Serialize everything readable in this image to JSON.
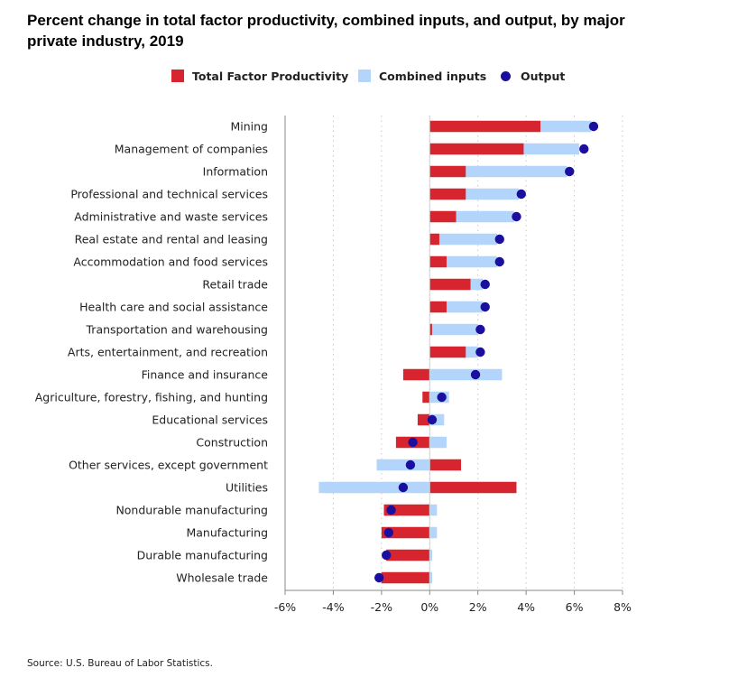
{
  "chart_data": {
    "type": "bar",
    "title": "Percent change in total factor productivity, combined inputs, and output, by major private industry, 2019",
    "orientation": "horizontal",
    "xlim": [
      -6,
      8
    ],
    "xticks": [
      -6,
      -4,
      -2,
      0,
      2,
      4,
      6,
      8
    ],
    "tick_labels": [
      "-6%",
      "-4%",
      "-2%",
      "0%",
      "2%",
      "4%",
      "6%",
      "8%"
    ],
    "grid": "vertical dotted",
    "legend_placement": "top-center",
    "categories": [
      "Mining",
      "Management of companies",
      "Information",
      "Professional and technical services",
      "Administrative and waste services",
      "Real estate and rental and leasing",
      "Accommodation and food services",
      "Retail trade",
      "Health care and social assistance",
      "Transportation and warehousing",
      "Arts, entertainment, and recreation",
      "Finance and insurance",
      "Agriculture, forestry, fishing, and hunting",
      "Educational services",
      "Construction",
      "Other services, except government",
      "Utilities",
      "Nondurable manufacturing",
      "Manufacturing",
      "Durable manufacturing",
      "Wholesale trade"
    ],
    "series": [
      {
        "name": "Total Factor Productivity",
        "color": "#d7252f",
        "values": [
          4.6,
          3.9,
          1.5,
          1.5,
          1.1,
          0.4,
          0.7,
          1.7,
          0.7,
          0.1,
          1.5,
          -1.1,
          -0.3,
          -0.5,
          -1.4,
          1.3,
          3.6,
          -1.9,
          -2.0,
          -1.8,
          -2.0
        ]
      },
      {
        "name": "Combined inputs",
        "color": "#b3d5fb",
        "values": [
          2.1,
          2.3,
          4.2,
          2.2,
          2.4,
          2.4,
          2.1,
          0.5,
          1.5,
          1.9,
          0.5,
          3.0,
          0.8,
          0.6,
          0.7,
          -2.2,
          -4.6,
          0.3,
          0.3,
          0.1,
          0.1
        ]
      },
      {
        "name": "Output",
        "color": "#1a0f9e",
        "values": [
          6.8,
          6.4,
          5.8,
          3.8,
          3.6,
          2.9,
          2.9,
          2.3,
          2.3,
          2.1,
          2.1,
          1.9,
          0.5,
          0.1,
          -0.7,
          -0.8,
          -1.1,
          -1.6,
          -1.7,
          -1.8,
          -2.1
        ]
      }
    ]
  },
  "title": "Percent change in total factor productivity, combined inputs, and output, by major private industry, 2019",
  "legend": {
    "tfp": "Total Factor Productivity",
    "inputs": "Combined inputs",
    "output": "Output"
  },
  "source": "Source: U.S. Bureau of Labor Statistics.",
  "colors": {
    "tfp": "#d7252f",
    "inputs": "#b3d5fb",
    "output": "#1a0f9e",
    "grid": "#c8c8c8",
    "axis": "#888888"
  }
}
